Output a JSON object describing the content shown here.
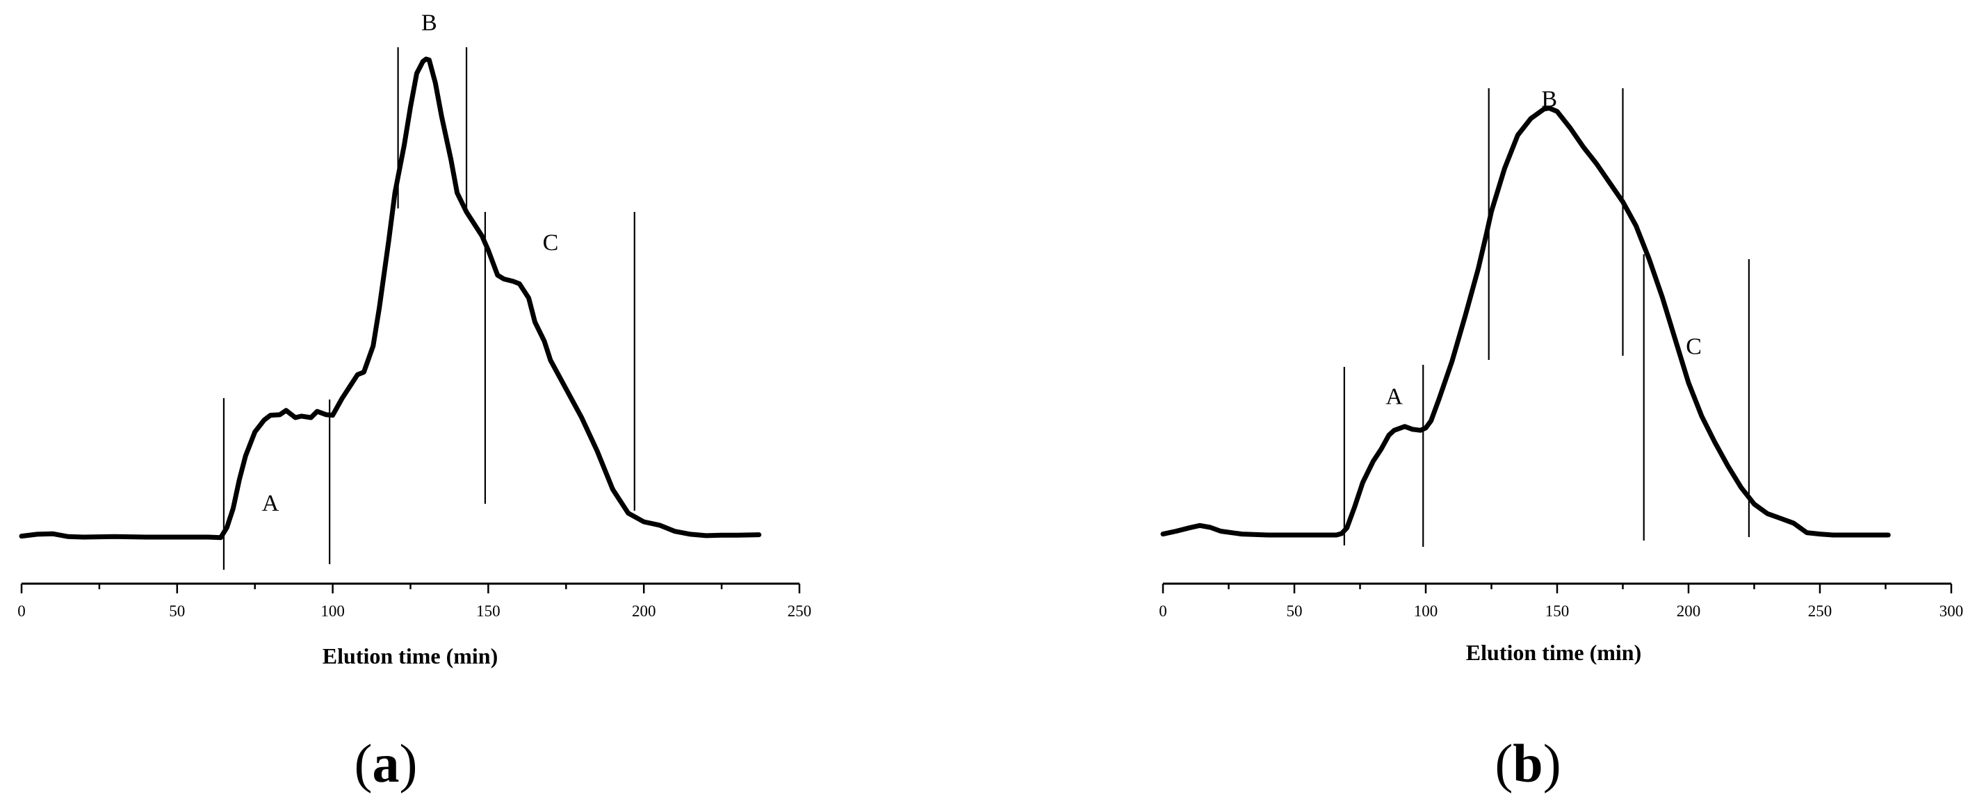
{
  "chart_data": [
    {
      "type": "line",
      "panel_label": "(a)",
      "panel_letter": "a",
      "xlabel": "Elution time (min)",
      "ylabel": "",
      "xlim": [
        0,
        250
      ],
      "xticks": [
        0,
        50,
        100,
        150,
        200,
        250
      ],
      "xtick_labels": [
        "0",
        "50",
        "100",
        "150",
        "200",
        "250"
      ],
      "ylim": [
        0,
        100
      ],
      "grid": false,
      "series": [
        {
          "x": [
            0,
            5,
            10,
            15,
            20,
            30,
            40,
            50,
            55,
            60,
            64,
            66,
            68,
            70,
            72,
            75,
            78,
            80,
            83,
            85,
            88,
            90,
            93,
            95,
            98,
            100,
            103,
            105,
            108,
            110,
            113,
            115,
            118,
            120,
            123,
            125,
            127,
            129,
            130,
            131,
            133,
            135,
            138,
            140,
            143,
            145,
            148,
            150,
            153,
            155,
            158,
            160,
            163,
            165,
            168,
            170,
            175,
            180,
            185,
            190,
            195,
            200,
            205,
            210,
            215,
            220,
            225,
            230,
            237
          ],
          "y": [
            0.2,
            0.6,
            0.7,
            0.1,
            0,
            0.1,
            0,
            0,
            0,
            0,
            -0.1,
            2,
            6,
            12,
            17,
            22,
            24.5,
            25.5,
            25.6,
            26.5,
            25,
            25.3,
            25,
            26.3,
            25.6,
            25.5,
            29,
            31,
            34,
            34.5,
            40,
            48,
            62,
            72,
            82,
            90,
            97,
            99.5,
            100,
            99.8,
            95,
            88,
            79,
            72,
            68,
            66,
            63,
            60,
            54.8,
            54,
            53.5,
            53,
            50,
            45,
            41,
            37,
            31,
            25,
            18,
            10,
            5,
            3.2,
            2.5,
            1.2,
            0.6,
            0.3,
            0.4,
            0.4,
            0.5
          ]
        }
      ],
      "dividers_x": [
        65,
        99,
        121,
        143,
        149,
        197
      ],
      "regions": [
        {
          "label": "A",
          "x": 80,
          "y": 5.5
        },
        {
          "label": "B",
          "x": 131,
          "y": 106
        },
        {
          "label": "C",
          "x": 170,
          "y": 60
        }
      ]
    },
    {
      "type": "line",
      "panel_label": "(b)",
      "panel_letter": "b",
      "xlabel": "Elution time (min)",
      "ylabel": "",
      "xlim": [
        0,
        300
      ],
      "xticks": [
        0,
        50,
        100,
        150,
        200,
        250,
        300
      ],
      "xtick_labels": [
        "0",
        "50",
        "100",
        "150",
        "200",
        "250",
        "300"
      ],
      "ylim": [
        0,
        100
      ],
      "grid": false,
      "series": [
        {
          "x": [
            0,
            5,
            10,
            14,
            18,
            22,
            30,
            40,
            50,
            60,
            66,
            68,
            70,
            73,
            76,
            80,
            83,
            86,
            88,
            90,
            92,
            95,
            98,
            100,
            102,
            105,
            110,
            115,
            120,
            123,
            125,
            130,
            135,
            140,
            145,
            147,
            150,
            155,
            160,
            165,
            170,
            175,
            180,
            185,
            190,
            195,
            200,
            205,
            210,
            215,
            220,
            225,
            230,
            235,
            240,
            245,
            250,
            255,
            260,
            270,
            276
          ],
          "y": [
            0.2,
            0.8,
            1.5,
            2,
            1.6,
            0.8,
            0.2,
            0,
            0,
            0,
            0,
            0.3,
            1.5,
            6,
            11,
            15.5,
            18,
            21,
            22,
            22.4,
            22.8,
            22.2,
            22,
            22.5,
            24,
            28.5,
            36.5,
            46,
            56,
            63,
            68,
            77,
            84,
            87.5,
            89.5,
            89.7,
            89,
            85.5,
            81.5,
            78,
            74,
            70,
            65,
            58,
            50,
            41,
            32,
            25,
            19.5,
            14.5,
            10,
            6.5,
            4.5,
            3.5,
            2.5,
            0.5,
            0.2,
            0,
            0,
            0,
            0
          ]
        }
      ],
      "dividers_x": [
        69,
        99,
        124,
        175,
        183,
        223
      ],
      "regions": [
        {
          "label": "A",
          "x": 88,
          "y": 27.5
        },
        {
          "label": "B",
          "x": 147,
          "y": 90
        },
        {
          "label": "C",
          "x": 202,
          "y": 38
        }
      ]
    }
  ]
}
